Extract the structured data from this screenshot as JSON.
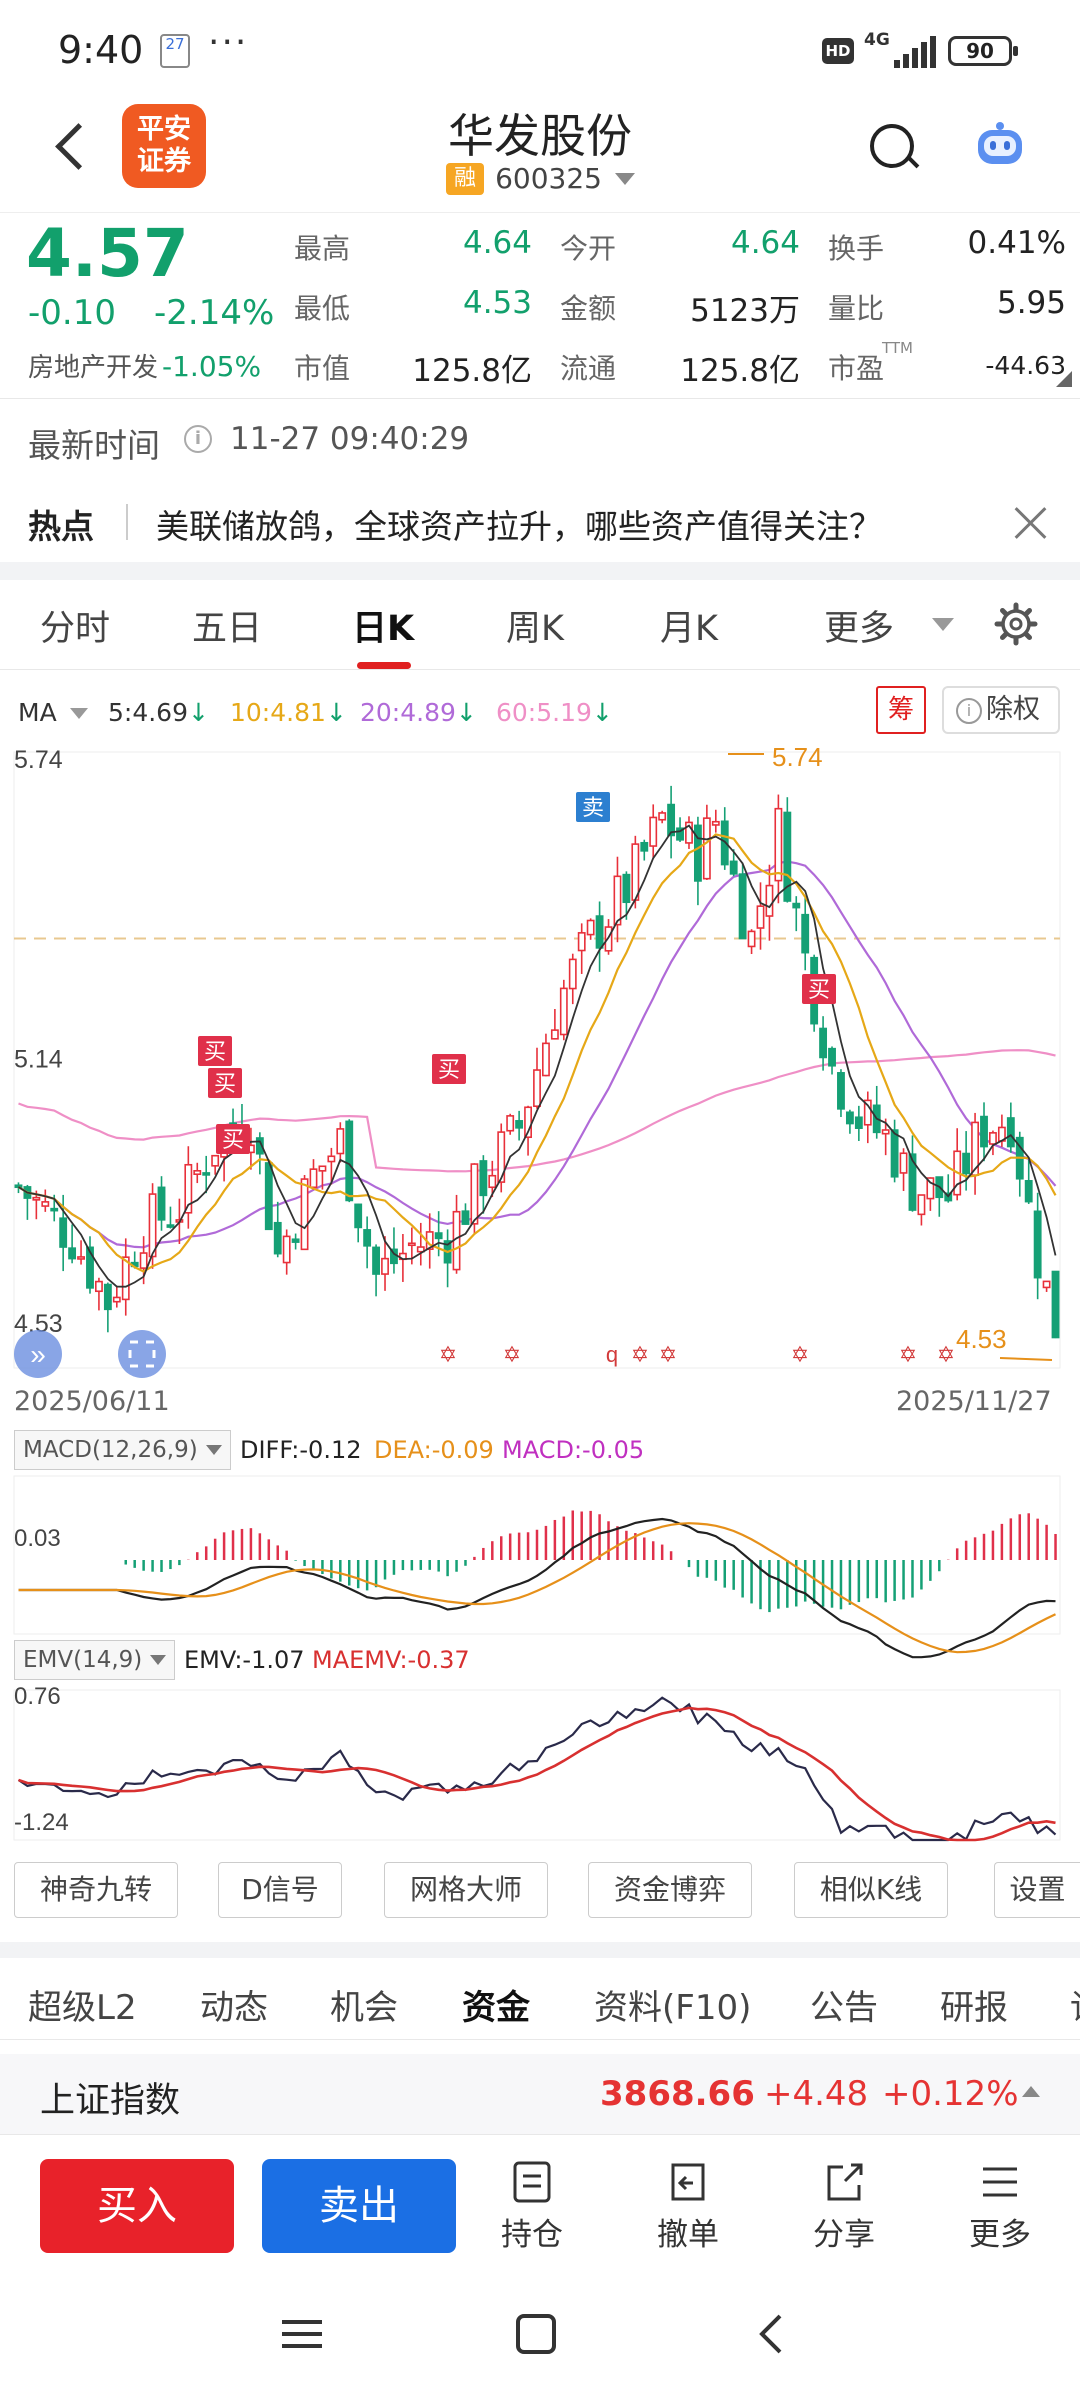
{
  "status_bar": {
    "time": "9:40",
    "calendar_day": "27",
    "network": "4G",
    "battery": "90",
    "hd": "HD"
  },
  "header": {
    "broker_logo": [
      "平安",
      "证券"
    ],
    "stock_name": "华发股份",
    "badge": "融",
    "code": "600325"
  },
  "quote": {
    "price": "4.57",
    "change": "-0.10",
    "change_pct": "-2.14%",
    "sector_name": "房地产开发",
    "sector_pct": "-1.05%",
    "fields": [
      {
        "label": "最高",
        "value": "4.64"
      },
      {
        "label": "最低",
        "value": "4.53"
      },
      {
        "label": "市值",
        "value": "125.8亿"
      },
      {
        "label": "今开",
        "value": "4.64"
      },
      {
        "label": "金额",
        "value": "5123万"
      },
      {
        "label": "流通",
        "value": "125.8亿"
      },
      {
        "label": "换手",
        "value": "0.41%"
      },
      {
        "label": "量比",
        "value": "5.95"
      },
      {
        "label": "市盈",
        "value": "-44.63"
      }
    ],
    "ttm": "TTM"
  },
  "latest": {
    "label": "最新时间",
    "time": "11-27 09:40:29"
  },
  "hot": {
    "label": "热点",
    "text": "美联储放鸽，全球资产拉升，哪些资产值得关注？"
  },
  "chart_tabs": [
    "分时",
    "五日",
    "日K",
    "周K",
    "月K",
    "更多"
  ],
  "active_tab": "日K",
  "ma_legend": {
    "label": "MA",
    "items": [
      {
        "text": "5:4.69",
        "color": "#333333"
      },
      {
        "text": "10:4.81",
        "color": "#e6a817"
      },
      {
        "text": "20:4.89",
        "color": "#b06ad8"
      },
      {
        "text": "60:5.19",
        "color": "#ef8fc6"
      }
    ],
    "chip_button": "筹",
    "fq_button": "除权"
  },
  "chart_data": {
    "type": "candlestick",
    "date_start": "2025/06/11",
    "date_end": "2025/11/27",
    "y_labels": [
      "5.74",
      "5.14",
      "4.53"
    ],
    "high_marker": "5.74",
    "low_marker": "4.53",
    "signals": {
      "buy": "买",
      "sell": "卖",
      "q": "q"
    },
    "colors": {
      "up": "#e8303a",
      "down": "#15a075",
      "ma5": "#333333",
      "ma10": "#e6a817",
      "ma20": "#b06ad8",
      "ma60": "#ef8fc6"
    }
  },
  "macd": {
    "label": "MACD(12,26,9)",
    "diff": "DIFF:-0.12",
    "dea": "DEA:-0.09",
    "macd": "MACD:-0.05",
    "y_label": "0.03"
  },
  "emv": {
    "label": "EMV(14,9)",
    "emv": "EMV:-1.07",
    "maemv": "MAEMV:-0.37",
    "y_top": "0.76",
    "y_bottom": "-1.24"
  },
  "tools": [
    "神奇九转",
    "D信号",
    "网格大师",
    "资金博弈",
    "相似K线",
    "设置"
  ],
  "bottom_tabs": [
    "超级L2",
    "动态",
    "机会",
    "资金",
    "资料(F10)",
    "公告",
    "研报",
    "讨论"
  ],
  "active_bottom_tab": "资金",
  "index": {
    "name": "上证指数",
    "value": "3868.66",
    "change": "+4.48",
    "pct": "+0.12%"
  },
  "actions": {
    "buy": "买入",
    "sell": "卖出",
    "items": [
      "持仓",
      "撤单",
      "分享",
      "更多"
    ]
  }
}
